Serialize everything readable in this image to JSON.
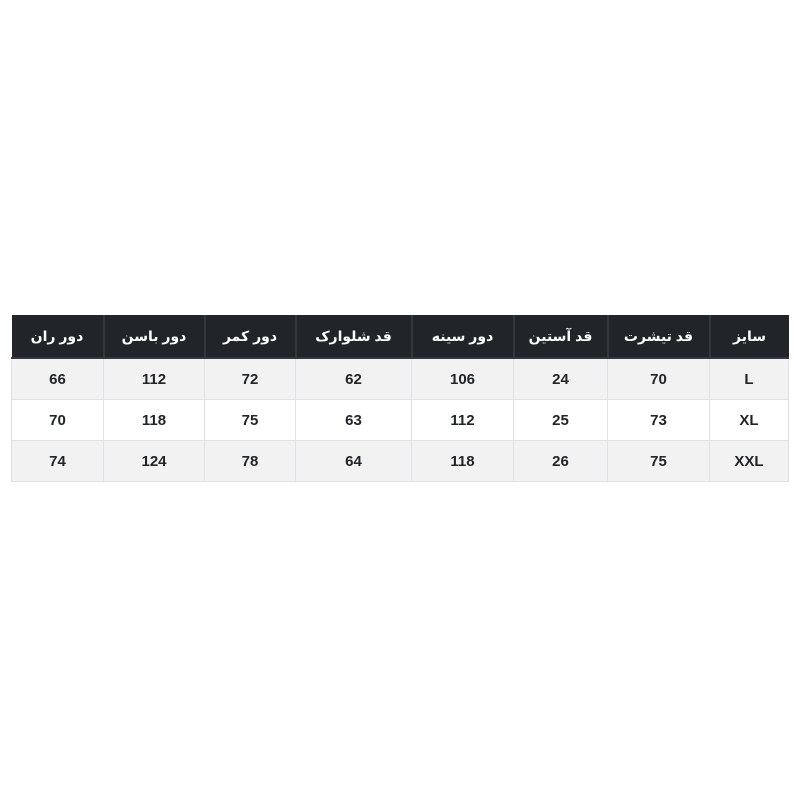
{
  "page": {
    "background": "#ffffff",
    "language": "fa",
    "direction": "rtl"
  },
  "colors": {
    "page_bg": "#ffffff",
    "header_bg": "#212529",
    "header_border": "#32383e",
    "header_text": "#ffffff",
    "stripe_bg": "#f2f2f2",
    "body_border": "#dee2e6",
    "body_text": "#212529"
  },
  "chart_data": {
    "type": "table",
    "title": "",
    "direction": "rtl",
    "column_order": "right-to-left",
    "legend_position": "none",
    "columns": [
      "سایز",
      "قد تیشرت",
      "قد آستین",
      "دور سینه",
      "قد شلوارک",
      "دور کمر",
      "دور باسن",
      "دور ران"
    ],
    "rows": [
      [
        "L",
        "70",
        "24",
        "106",
        "62",
        "72",
        "112",
        "66"
      ],
      [
        "XL",
        "73",
        "25",
        "112",
        "63",
        "75",
        "118",
        "70"
      ],
      [
        "XXL",
        "75",
        "26",
        "118",
        "64",
        "78",
        "124",
        "74"
      ]
    ]
  }
}
